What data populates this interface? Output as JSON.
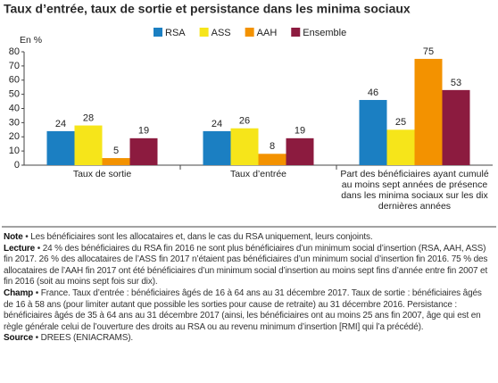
{
  "chart_data": {
    "type": "bar",
    "title": "Taux d’entrée, taux de sortie et persistance dans les minima sociaux",
    "y_label": "En %",
    "categories": [
      "Taux de sortie",
      "Taux d’entrée",
      "Part des bénéficiaires ayant cumulé au moins sept années de présence dans les minima sociaux sur les dix dernières années"
    ],
    "series": [
      {
        "name": "RSA",
        "color": "#1b7fc2",
        "values": [
          24,
          24,
          46
        ]
      },
      {
        "name": "ASS",
        "color": "#f6e51a",
        "values": [
          28,
          26,
          25
        ]
      },
      {
        "name": "AAH",
        "color": "#f39200",
        "values": [
          5,
          8,
          75
        ]
      },
      {
        "name": "Ensemble",
        "color": "#8c1b3f",
        "values": [
          19,
          19,
          53
        ]
      }
    ],
    "ylim": [
      0,
      80
    ],
    "yticks": [
      0,
      10,
      20,
      30,
      40,
      50,
      60,
      70,
      80
    ],
    "grid": false
  },
  "notes": [
    {
      "label": "Note",
      "text": "• Les bénéficiaires sont les allocataires et, dans le cas du RSA uniquement, leurs conjoints."
    },
    {
      "label": "Lecture",
      "text": "• 24 % des bénéficiaires du RSA fin 2016 ne sont plus bénéficiaires d’un minimum social d’insertion (RSA, AAH, ASS) fin 2017. 26 % des allocataires de l’ASS fin 2017 n’étaient pas bénéficiaires d’un minimum social d’insertion fin 2016. 75 % des allocataires de l’AAH fin 2017 ont été bénéficiaires d’un minimum social d’insertion au moins sept fins d’année entre fin 2007 et fin 2016 (soit au moins sept fois sur dix)."
    },
    {
      "label": "Champ",
      "text": "• France. Taux d’entrée : bénéficiaires âgés de 16 à 64 ans au 31 décembre 2017. Taux de sortie : bénéficiaires âgés de 16 à 58 ans (pour limiter autant que possible les sorties pour cause de retraite) au 31 décembre 2016. Persistance : bénéficiaires âgés de 35 à 64 ans au 31 décembre 2017 (ainsi, les bénéficiaires ont au moins 25 ans fin 2007, âge qui est en règle générale celui de l’ouverture des droits au RSA ou au revenu minimum d’insertion [RMI] qui l’a précédé)."
    },
    {
      "label": "Source",
      "text": "• DREES (ENIACRAMS)."
    }
  ]
}
